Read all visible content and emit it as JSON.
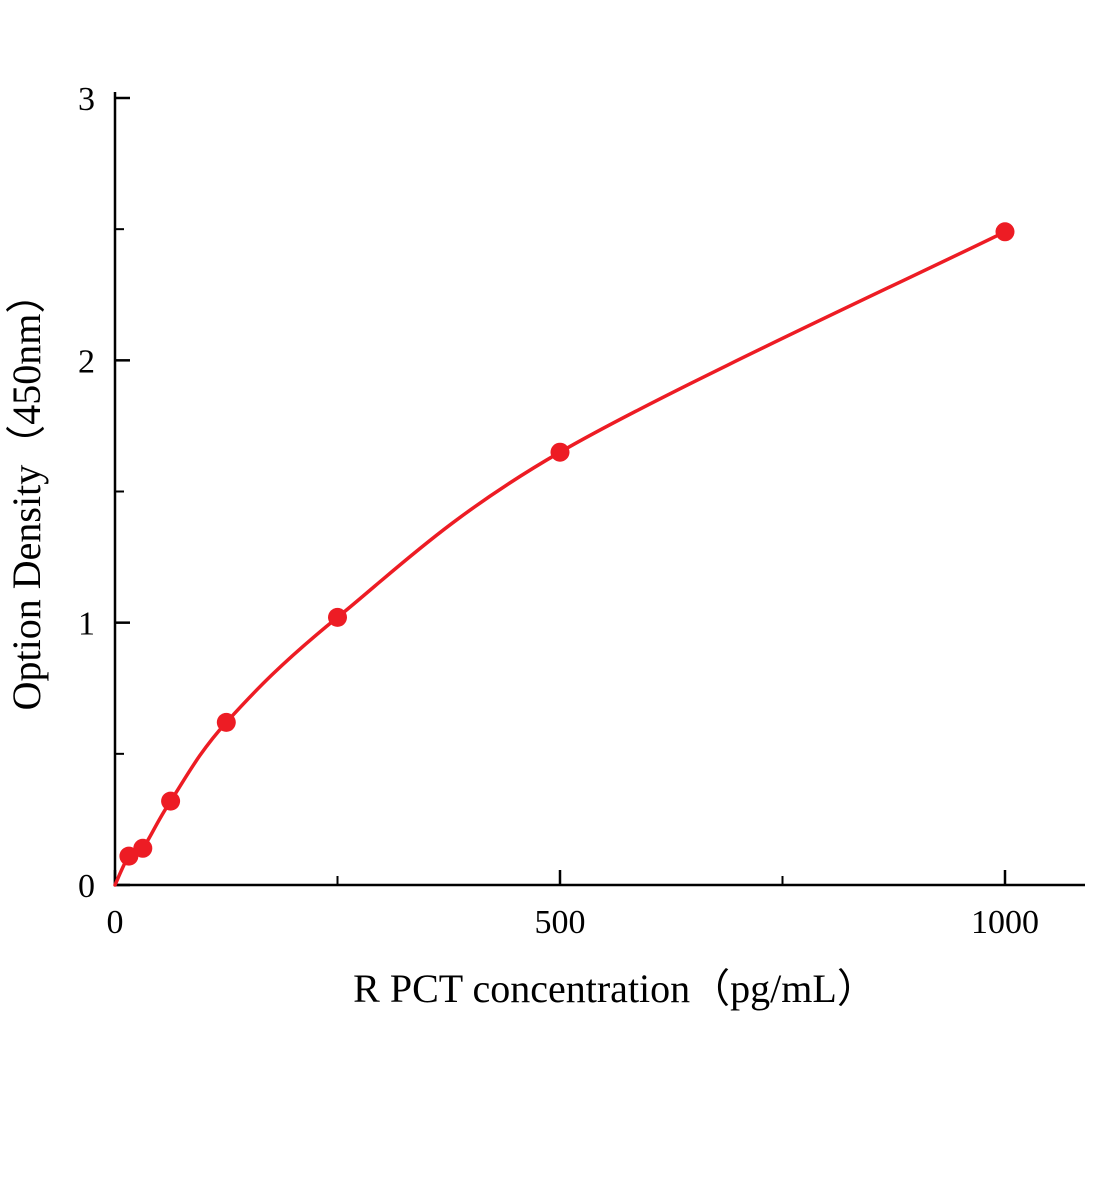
{
  "page": {
    "background": "#ffffff"
  },
  "chart_data": {
    "type": "line",
    "title": "",
    "xlabel": "R PCT concentration（pg/mL）",
    "ylabel": "Option Density（450nm）",
    "xlim": [
      0,
      1090
    ],
    "ylim": [
      0,
      3
    ],
    "x_ticks": [
      0,
      500,
      1000
    ],
    "x_minor_ticks": [
      250,
      750
    ],
    "y_ticks": [
      0,
      1,
      2,
      3
    ],
    "y_minor_ticks": [
      0.5,
      1.5,
      2.5
    ],
    "grid": false,
    "legend": null,
    "line_color": "#ed1c24",
    "point_color": "#ed1c24",
    "axis_color": "#000000",
    "curve_start": {
      "x": 0,
      "y": 0
    },
    "points": [
      {
        "x": 15.6,
        "y": 0.11
      },
      {
        "x": 31.2,
        "y": 0.14
      },
      {
        "x": 62.5,
        "y": 0.32
      },
      {
        "x": 125,
        "y": 0.62
      },
      {
        "x": 250,
        "y": 1.02
      },
      {
        "x": 500,
        "y": 1.65
      },
      {
        "x": 1000,
        "y": 2.49
      }
    ]
  }
}
